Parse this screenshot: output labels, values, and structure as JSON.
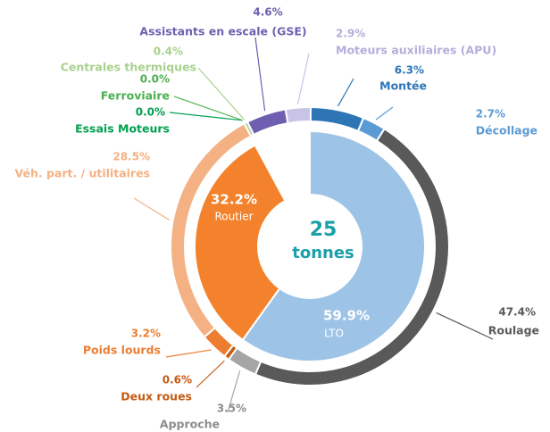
{
  "chart_data": {
    "type": "sunburst",
    "total": 25,
    "total_unit": "tonnes",
    "inner": {
      "categories": [
        "LTO",
        "Routier"
      ],
      "values": [
        59.9,
        32.2
      ],
      "value_labels": [
        "59.9%",
        "32.2%"
      ],
      "colors": [
        "#9dc3e6",
        "#f4822c"
      ]
    },
    "outer": {
      "categories": [
        "Montée",
        "Décollage",
        "Roulage",
        "Approche",
        "Deux roues",
        "Poids lourds",
        "Véh. part. / utilitaires",
        "Essais Moteurs",
        "Ferroviaire",
        "Centrales thermiques",
        "Assistants en escale (GSE)",
        "Moteurs auxiliaires (APU)"
      ],
      "values": [
        6.3,
        2.7,
        47.4,
        3.5,
        0.6,
        3.2,
        28.5,
        0.0,
        0.0,
        0.4,
        4.6,
        2.9
      ],
      "value_labels": [
        "6.3%",
        "2.7%",
        "47.4%",
        "3.5%",
        "0.6%",
        "3.2%",
        "28.5%",
        "0.0%",
        "0.0%",
        "0.4%",
        "4.6%",
        "2.9%"
      ],
      "colors": [
        "#2e75b6",
        "#5b9bd5",
        "#595959",
        "#a5a5a5",
        "#c55a11",
        "#ed7d31",
        "#f4b183",
        "#00a050",
        "#5cb85c",
        "#a9d18e",
        "#6f5fb0",
        "#c9c3e6"
      ]
    }
  }
}
